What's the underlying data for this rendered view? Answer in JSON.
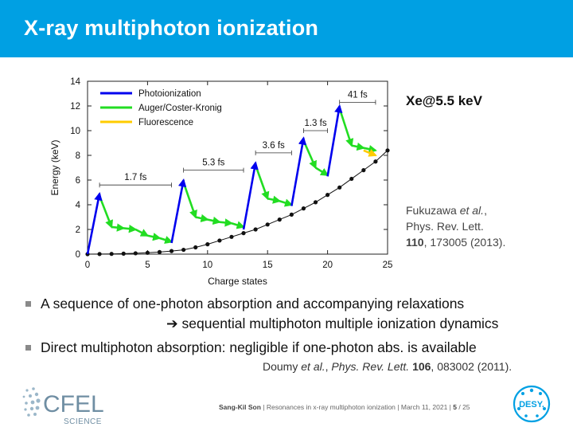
{
  "slide": {
    "title": "X-ray multiphoton ionization",
    "system_label": "Xe@5.5 keV",
    "reference1": {
      "authors": "Fukuzawa",
      "etal": "et al.",
      "journal": "Phys. Rev. Lett.",
      "volume": "110",
      "rest": ", 173005 (2013)."
    },
    "bullets": [
      {
        "text": "A sequence of one-photon absorption and accompanying relaxations"
      },
      {
        "text": "Direct multiphoton absorption: negligible if one-photon abs. is available"
      }
    ],
    "bullet1_continuation": "sequential multiphoton multiple ionization dynamics",
    "reference2": {
      "authors": "Doumy",
      "etal": "et al.",
      "journal": "Phys. Rev. Lett.",
      "volume": "106",
      "rest": ", 083002 (2011)."
    },
    "footer": {
      "author": "Sang-Kil Son",
      "talk": "Resonances in x-ray multiphoton ionization",
      "date": "March 11, 2021",
      "page": "5",
      "total": "/ 25"
    },
    "logos": {
      "cfel_main": "CFEL",
      "cfel_sub": "SCIENCE",
      "desy": "DESY."
    },
    "colors": {
      "header": "#00a0e3",
      "photoionization": "#0000ee",
      "auger": "#22dd22",
      "fluorescence": "#ffcc00"
    }
  },
  "chart_data": {
    "type": "line",
    "xlabel": "Charge states",
    "ylabel": "Energy (keV)",
    "xlim": [
      0,
      25
    ],
    "ylim": [
      0,
      14
    ],
    "xticks": [
      0,
      5,
      10,
      15,
      20,
      25
    ],
    "yticks": [
      0,
      2,
      4,
      6,
      8,
      10,
      12,
      14
    ],
    "legend": {
      "placement": "top-left",
      "entries": [
        "Photoionization",
        "Auger/Coster-Kronig",
        "Fluorescence"
      ]
    },
    "ground_state_curve": {
      "x": [
        0,
        1,
        2,
        3,
        4,
        5,
        6,
        7,
        8,
        9,
        10,
        11,
        12,
        13,
        14,
        15,
        16,
        17,
        18,
        19,
        20,
        21,
        22,
        23,
        24,
        25
      ],
      "y": [
        0,
        0.01,
        0.02,
        0.04,
        0.07,
        0.11,
        0.17,
        0.25,
        0.35,
        0.55,
        0.8,
        1.1,
        1.4,
        1.7,
        2.0,
        2.4,
        2.8,
        3.2,
        3.7,
        4.2,
        4.8,
        5.4,
        6.1,
        6.8,
        7.5,
        8.4
      ]
    },
    "photoionization": [
      {
        "from": [
          0,
          0.0
        ],
        "to": [
          1,
          4.9
        ]
      },
      {
        "from": [
          7,
          0.9
        ],
        "to": [
          8,
          6.0
        ]
      },
      {
        "from": [
          13,
          2.0
        ],
        "to": [
          14,
          7.4
        ]
      },
      {
        "from": [
          17,
          3.9
        ],
        "to": [
          18,
          9.4
        ]
      },
      {
        "from": [
          20,
          6.3
        ],
        "to": [
          21,
          12.0
        ]
      }
    ],
    "auger": [
      {
        "from": [
          1,
          4.7
        ],
        "to": [
          2,
          2.2
        ]
      },
      {
        "from": [
          2,
          2.2
        ],
        "to": [
          3,
          2.1
        ]
      },
      {
        "from": [
          3,
          2.1
        ],
        "to": [
          4,
          2.0
        ]
      },
      {
        "from": [
          4,
          2.0
        ],
        "to": [
          5,
          1.5
        ]
      },
      {
        "from": [
          5,
          1.5
        ],
        "to": [
          6,
          1.3
        ]
      },
      {
        "from": [
          6,
          1.3
        ],
        "to": [
          7,
          1.0
        ]
      },
      {
        "from": [
          8,
          5.8
        ],
        "to": [
          9,
          3.0
        ]
      },
      {
        "from": [
          9,
          3.0
        ],
        "to": [
          10,
          2.8
        ]
      },
      {
        "from": [
          10,
          2.8
        ],
        "to": [
          11,
          2.6
        ]
      },
      {
        "from": [
          11,
          2.6
        ],
        "to": [
          12,
          2.5
        ]
      },
      {
        "from": [
          12,
          2.5
        ],
        "to": [
          13,
          2.2
        ]
      },
      {
        "from": [
          14,
          7.2
        ],
        "to": [
          15,
          4.5
        ]
      },
      {
        "from": [
          15,
          4.5
        ],
        "to": [
          16,
          4.3
        ]
      },
      {
        "from": [
          16,
          4.3
        ],
        "to": [
          17,
          4.0
        ]
      },
      {
        "from": [
          18,
          9.2
        ],
        "to": [
          19,
          7.0
        ]
      },
      {
        "from": [
          19,
          7.0
        ],
        "to": [
          20,
          6.4
        ]
      },
      {
        "from": [
          21,
          11.8
        ],
        "to": [
          22,
          8.8
        ]
      },
      {
        "from": [
          22,
          8.8
        ],
        "to": [
          23,
          8.6
        ]
      },
      {
        "from": [
          23,
          8.6
        ],
        "to": [
          24,
          8.4
        ]
      }
    ],
    "fluorescence": [
      {
        "from": [
          23,
          8.4
        ],
        "to": [
          24,
          8.0
        ]
      }
    ],
    "time_annotations": [
      {
        "label": "1.7 fs",
        "x1": 1,
        "x2": 7,
        "y": 5.6
      },
      {
        "label": "5.3 fs",
        "x1": 8,
        "x2": 13,
        "y": 6.8
      },
      {
        "label": "3.6 fs",
        "x1": 14,
        "x2": 17,
        "y": 8.2
      },
      {
        "label": "1.3 fs",
        "x1": 18,
        "x2": 20,
        "y": 10.0
      },
      {
        "label": "41 fs",
        "x1": 21,
        "x2": 24,
        "y": 12.3
      }
    ]
  }
}
